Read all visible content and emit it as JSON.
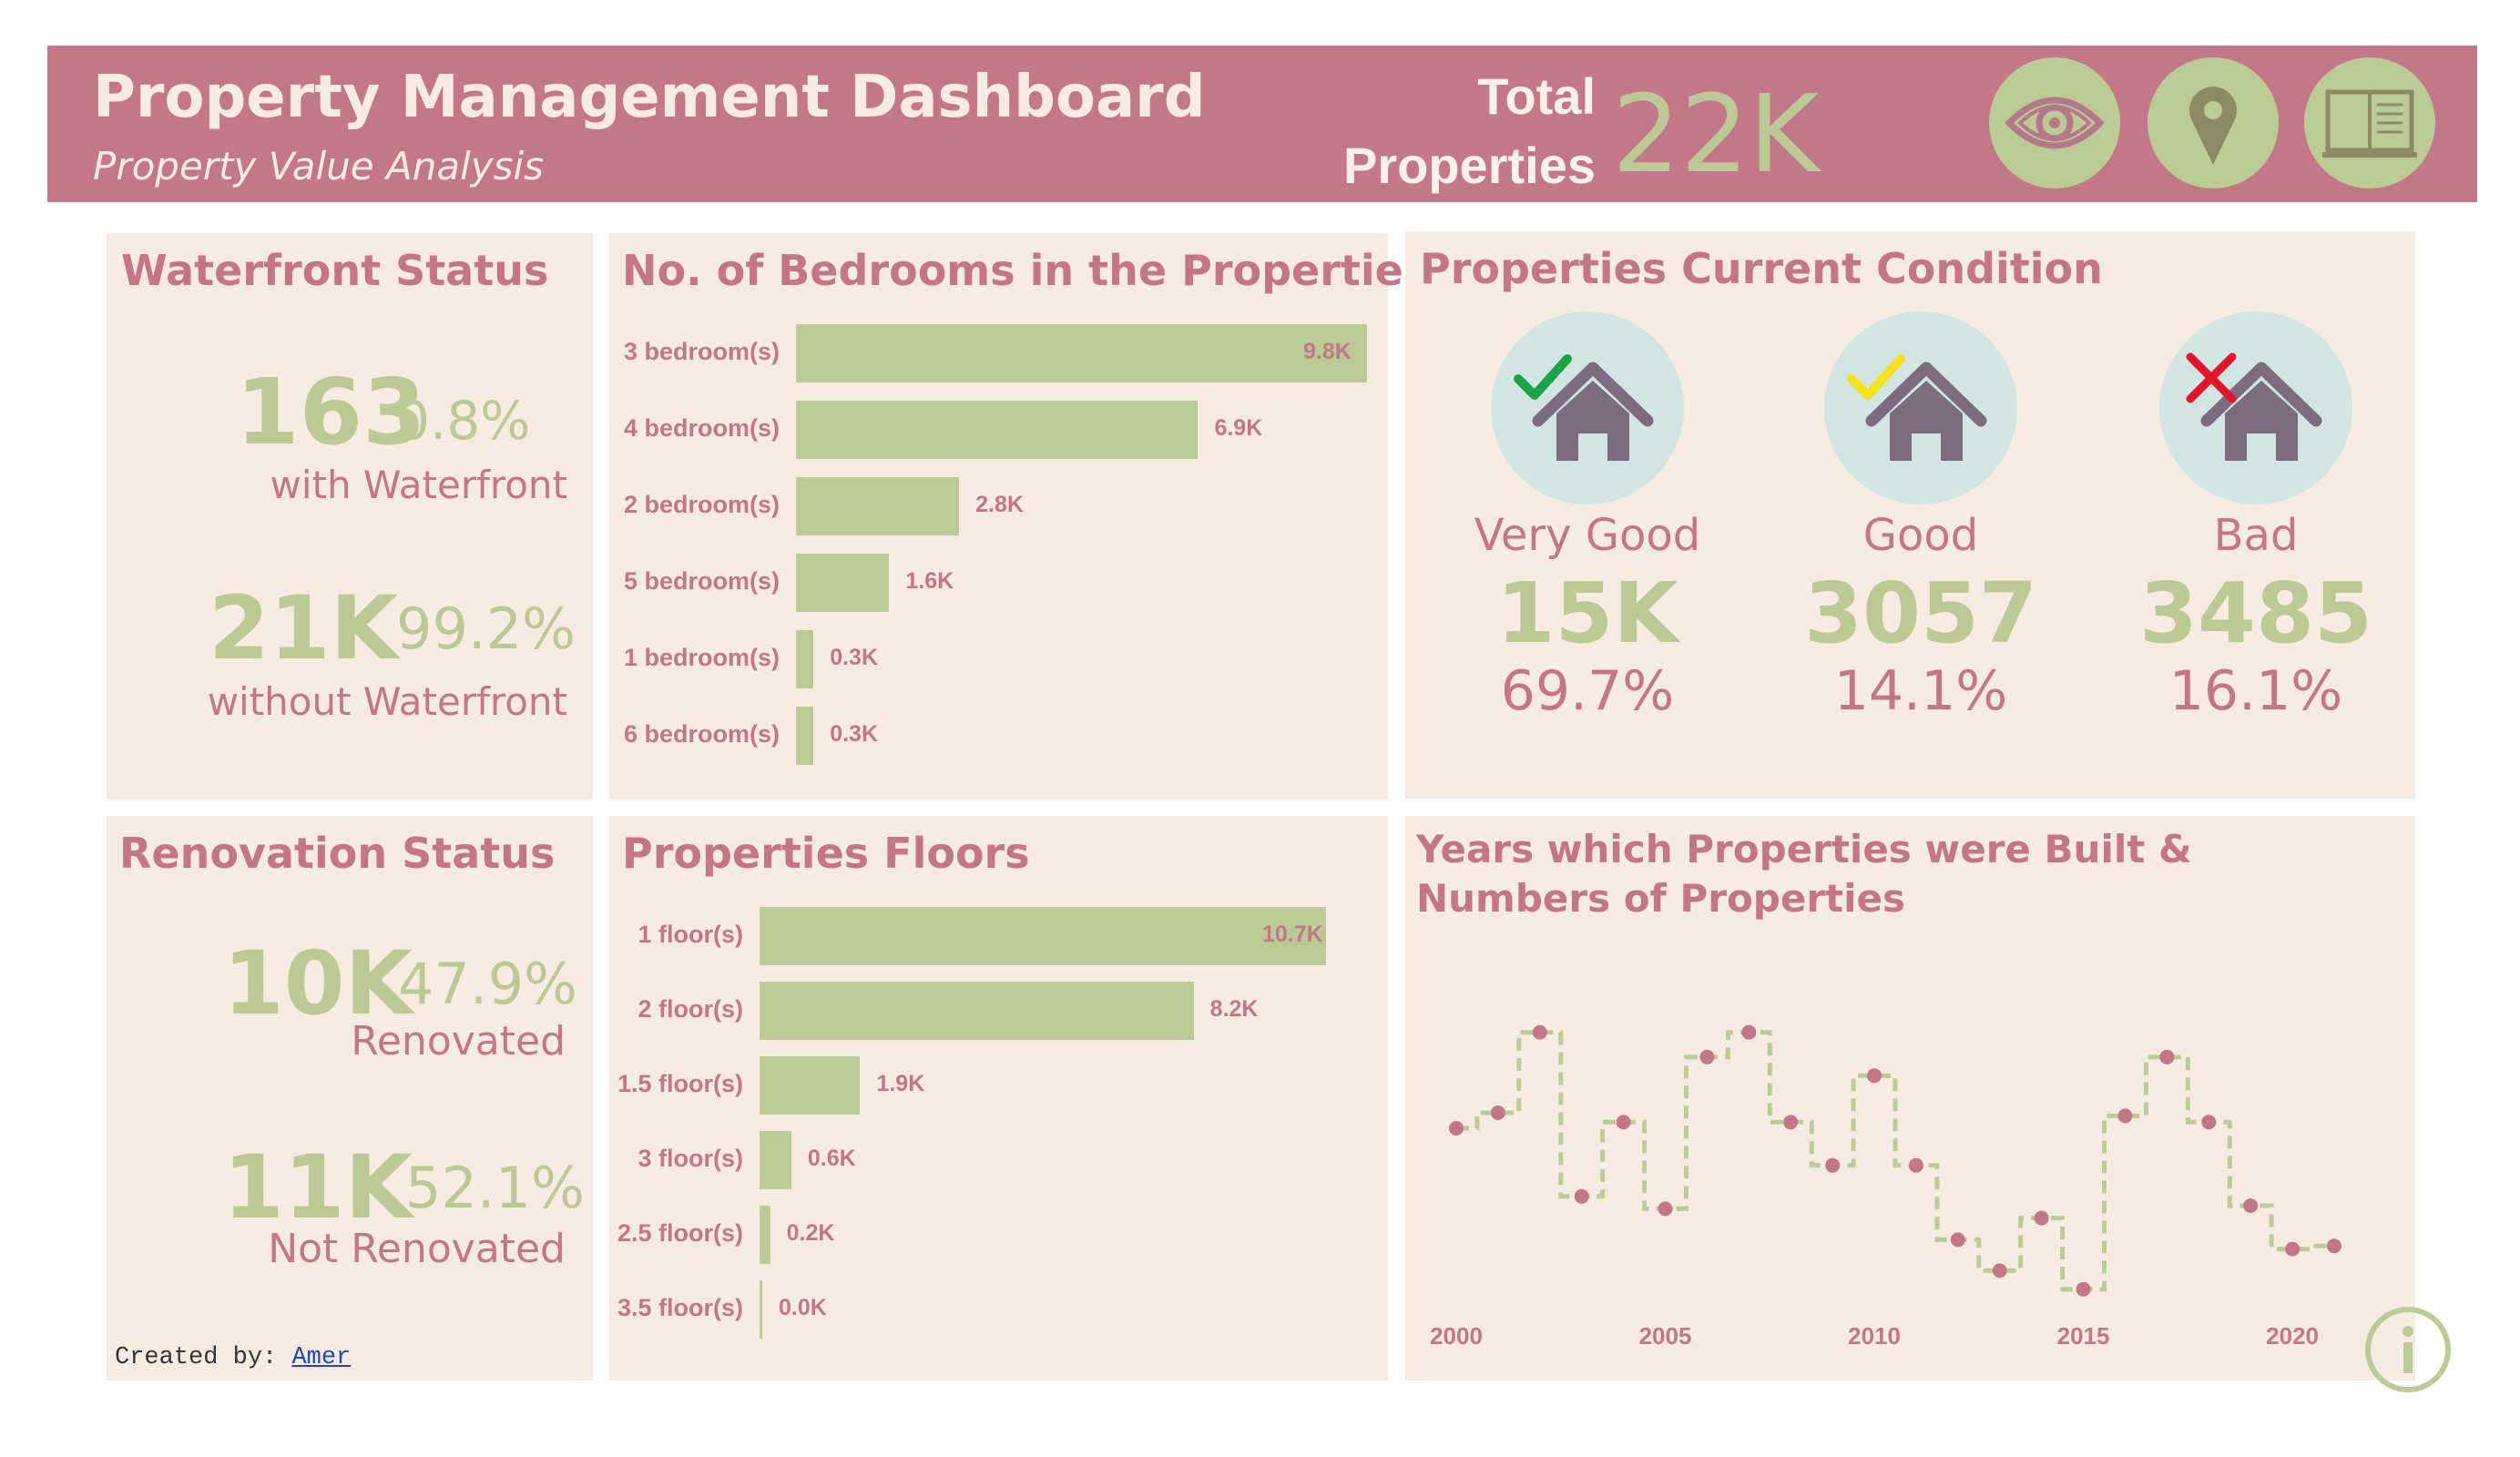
{
  "header": {
    "title": "Property Management Dashboard",
    "subtitle": "Property Value Analysis",
    "total_label_line1": "Total",
    "total_label_line2": "Properties",
    "total_value": "22K",
    "icons": [
      "eye-icon",
      "location-pin-icon",
      "book-icon"
    ],
    "colors": {
      "bar": "#c27888",
      "text": "#f7ebe3",
      "accent": "#bcc995"
    }
  },
  "waterfront": {
    "title": "Waterfront Status",
    "with_value": "163",
    "with_pct": "0.8%",
    "with_label": "with Waterfront",
    "without_value": "21K",
    "without_pct": "99.2%",
    "without_label": "without Waterfront"
  },
  "renovation": {
    "title": "Renovation Status",
    "renovated_value": "10K",
    "renovated_pct": "47.9%",
    "renovated_label": "Renovated",
    "not_value": "11K",
    "not_pct": "52.1%",
    "not_label": "Not Renovated"
  },
  "bedrooms": {
    "title": "No. of Bedrooms in the Properties"
  },
  "floors": {
    "title": "Properties Floors"
  },
  "condition": {
    "title": "Properties Current Condition",
    "items": [
      {
        "label": "Very Good",
        "value": "15K",
        "pct": "69.7%",
        "mark": "check",
        "mark_color": "#1aa34a"
      },
      {
        "label": "Good",
        "value": "3057",
        "pct": "14.1%",
        "mark": "check",
        "mark_color": "#f2e11c"
      },
      {
        "label": "Bad",
        "value": "3485",
        "pct": "16.1%",
        "mark": "cross",
        "mark_color": "#e3152b"
      }
    ]
  },
  "years": {
    "title_line1": "Years which Properties were Built &",
    "title_line2": "Numbers of Properties"
  },
  "credit": {
    "prefix": "Created by:",
    "name": "Amer"
  },
  "chart_data": [
    {
      "type": "bar",
      "title": "No. of Bedrooms in the Properties",
      "orientation": "horizontal",
      "categories": [
        "3 bedroom(s)",
        "4 bedroom(s)",
        "2 bedroom(s)",
        "5 bedroom(s)",
        "1 bedroom(s)",
        "6 bedroom(s)"
      ],
      "values": [
        9.8,
        6.9,
        2.8,
        1.6,
        0.3,
        0.3
      ],
      "value_labels": [
        "9.8K",
        "6.9K",
        "2.8K",
        "1.6K",
        "0.3K",
        "0.3K"
      ],
      "units": "thousands",
      "color": "#bccb96"
    },
    {
      "type": "bar",
      "title": "Properties Floors",
      "orientation": "horizontal",
      "categories": [
        "1 floor(s)",
        "2 floor(s)",
        "1.5 floor(s)",
        "3 floor(s)",
        "2.5 floor(s)",
        "3.5 floor(s)"
      ],
      "values": [
        10.7,
        8.2,
        1.9,
        0.6,
        0.2,
        0.0
      ],
      "value_labels": [
        "10.7K",
        "8.2K",
        "1.9K",
        "0.6K",
        "0.2K",
        "0.0K"
      ],
      "units": "thousands",
      "color": "#bccb96"
    },
    {
      "type": "line",
      "title": "Years which Properties were Built & Numbers of Properties",
      "step": true,
      "x": [
        2000,
        2001,
        2002,
        2003,
        2004,
        2005,
        2006,
        2007,
        2008,
        2009,
        2010,
        2011,
        2012,
        2013,
        2014,
        2015,
        2016,
        2017,
        2018,
        2019,
        2020,
        2021
      ],
      "y": [
        0.55,
        0.6,
        0.86,
        0.33,
        0.57,
        0.29,
        0.78,
        0.86,
        0.57,
        0.43,
        0.72,
        0.43,
        0.19,
        0.09,
        0.26,
        0.03,
        0.59,
        0.78,
        0.57,
        0.3,
        0.16,
        0.17
      ],
      "x_ticks": [
        2000,
        2005,
        2010,
        2015,
        2020
      ],
      "line_color": "#bccb96",
      "marker_color": "#c27687",
      "grid": false
    }
  ]
}
